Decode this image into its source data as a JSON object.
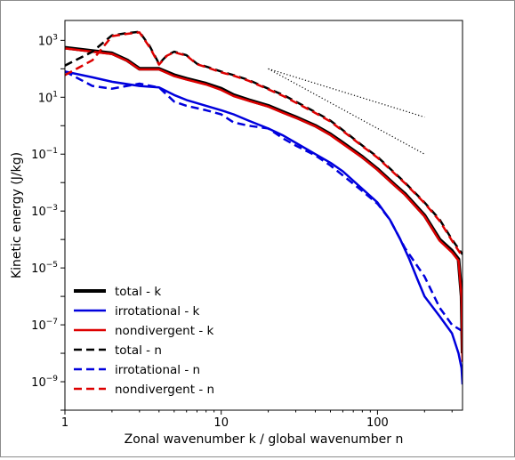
{
  "chart_data": {
    "type": "line",
    "xlabel": "Zonal wavenumber k / global wavenumber n",
    "ylabel": "Kinetic energy (J/kg)",
    "x_scale": "log",
    "y_scale": "log",
    "xlim": [
      1,
      350
    ],
    "ylim": [
      1e-10,
      5000
    ],
    "x_ticks": [
      {
        "value": 1,
        "label": "1"
      },
      {
        "value": 10,
        "label": "10"
      },
      {
        "value": 100,
        "label": "100"
      }
    ],
    "y_ticks": [
      {
        "value": 1e-09,
        "base": "10",
        "exp": "−9"
      },
      {
        "value": 1e-07,
        "base": "10",
        "exp": "−7"
      },
      {
        "value": 1e-05,
        "base": "10",
        "exp": "−5"
      },
      {
        "value": 0.001,
        "base": "10",
        "exp": "−3"
      },
      {
        "value": 0.1,
        "base": "10",
        "exp": "−1"
      },
      {
        "value": 10,
        "base": "10",
        "exp": "1"
      },
      {
        "value": 1000,
        "base": "10",
        "exp": "3"
      }
    ],
    "grid": false,
    "legend_position": "lower-left",
    "series": [
      {
        "name": "total - k",
        "color": "#000000",
        "style": "solid",
        "width": 4,
        "points": [
          [
            1,
            550
          ],
          [
            2,
            350
          ],
          [
            2.5,
            200
          ],
          [
            3,
            100
          ],
          [
            4,
            100
          ],
          [
            5,
            60
          ],
          [
            6,
            45
          ],
          [
            8,
            30
          ],
          [
            10,
            20
          ],
          [
            12,
            12
          ],
          [
            15,
            8
          ],
          [
            20,
            5
          ],
          [
            25,
            3
          ],
          [
            30,
            2
          ],
          [
            40,
            1
          ],
          [
            50,
            0.5
          ],
          [
            60,
            0.25
          ],
          [
            80,
            0.08
          ],
          [
            100,
            0.03
          ],
          [
            130,
            0.008
          ],
          [
            150,
            0.004
          ],
          [
            200,
            0.0007
          ],
          [
            250,
            0.0001
          ],
          [
            300,
            4e-05
          ],
          [
            330,
            2e-05
          ],
          [
            345,
            1e-06
          ],
          [
            350,
            1e-08
          ]
        ]
      },
      {
        "name": "irrotational - k",
        "color": "#0000dd",
        "style": "solid",
        "width": 2.5,
        "points": [
          [
            1,
            80
          ],
          [
            1.5,
            50
          ],
          [
            2,
            35
          ],
          [
            3,
            25
          ],
          [
            4,
            22
          ],
          [
            5,
            12
          ],
          [
            6,
            8
          ],
          [
            8,
            5
          ],
          [
            10,
            3.5
          ],
          [
            12,
            2.5
          ],
          [
            15,
            1.5
          ],
          [
            20,
            0.8
          ],
          [
            25,
            0.45
          ],
          [
            30,
            0.25
          ],
          [
            40,
            0.1
          ],
          [
            50,
            0.05
          ],
          [
            60,
            0.025
          ],
          [
            80,
            0.006
          ],
          [
            100,
            0.002
          ],
          [
            120,
            0.0005
          ],
          [
            140,
            0.0001
          ],
          [
            160,
            2e-05
          ],
          [
            180,
            4e-06
          ],
          [
            200,
            1e-06
          ],
          [
            250,
            2e-07
          ],
          [
            300,
            5e-08
          ],
          [
            330,
            1e-08
          ],
          [
            345,
            3e-09
          ],
          [
            350,
            8e-10
          ]
        ]
      },
      {
        "name": "nondivergent - k",
        "color": "#dd0000",
        "style": "solid",
        "width": 2.5,
        "points": [
          [
            1,
            520
          ],
          [
            2,
            330
          ],
          [
            2.5,
            190
          ],
          [
            3,
            95
          ],
          [
            4,
            95
          ],
          [
            5,
            55
          ],
          [
            6,
            42
          ],
          [
            8,
            28
          ],
          [
            10,
            18
          ],
          [
            12,
            11
          ],
          [
            15,
            7.5
          ],
          [
            20,
            4.7
          ],
          [
            25,
            2.8
          ],
          [
            30,
            1.9
          ],
          [
            40,
            0.95
          ],
          [
            50,
            0.47
          ],
          [
            60,
            0.23
          ],
          [
            80,
            0.075
          ],
          [
            100,
            0.028
          ],
          [
            130,
            0.0075
          ],
          [
            150,
            0.0037
          ],
          [
            200,
            0.00065
          ],
          [
            250,
            9e-05
          ],
          [
            300,
            3.5e-05
          ],
          [
            330,
            1.8e-05
          ],
          [
            345,
            9e-07
          ],
          [
            350,
            5e-09
          ]
        ]
      },
      {
        "name": "total - n",
        "color": "#000000",
        "style": "dash",
        "width": 2.5,
        "points": [
          [
            1,
            130
          ],
          [
            1.5,
            400
          ],
          [
            2,
            1500
          ],
          [
            2.5,
            1800
          ],
          [
            3,
            2000
          ],
          [
            3.5,
            600
          ],
          [
            4,
            150
          ],
          [
            4.5,
            300
          ],
          [
            5,
            400
          ],
          [
            6,
            300
          ],
          [
            7,
            150
          ],
          [
            8,
            120
          ],
          [
            10,
            80
          ],
          [
            12,
            60
          ],
          [
            15,
            40
          ],
          [
            20,
            20
          ],
          [
            25,
            12
          ],
          [
            30,
            7
          ],
          [
            40,
            3
          ],
          [
            50,
            1.5
          ],
          [
            60,
            0.7
          ],
          [
            80,
            0.2
          ],
          [
            100,
            0.08
          ],
          [
            150,
            0.01
          ],
          [
            200,
            0.002
          ],
          [
            250,
            0.0005
          ],
          [
            300,
            0.0001
          ],
          [
            350,
            3e-05
          ]
        ]
      },
      {
        "name": "irrotational - n",
        "color": "#0000dd",
        "style": "dash",
        "width": 2.5,
        "points": [
          [
            1,
            80
          ],
          [
            1.5,
            25
          ],
          [
            2,
            20
          ],
          [
            3,
            30
          ],
          [
            4,
            22
          ],
          [
            5,
            7
          ],
          [
            6,
            5
          ],
          [
            8,
            3.5
          ],
          [
            10,
            2.5
          ],
          [
            12,
            1.3
          ],
          [
            15,
            1
          ],
          [
            20,
            0.8
          ],
          [
            25,
            0.35
          ],
          [
            30,
            0.2
          ],
          [
            40,
            0.09
          ],
          [
            50,
            0.04
          ],
          [
            60,
            0.018
          ],
          [
            80,
            0.005
          ],
          [
            100,
            0.0018
          ],
          [
            120,
            0.0005
          ],
          [
            150,
            5e-05
          ],
          [
            200,
            5e-06
          ],
          [
            250,
            4e-07
          ],
          [
            300,
            1e-07
          ],
          [
            350,
            6e-08
          ]
        ]
      },
      {
        "name": "nondivergent - n",
        "color": "#dd0000",
        "style": "dash",
        "width": 2.5,
        "points": [
          [
            1,
            60
          ],
          [
            1.5,
            200
          ],
          [
            2,
            1400
          ],
          [
            2.5,
            1700
          ],
          [
            3,
            1900
          ],
          [
            3.5,
            550
          ],
          [
            4,
            140
          ],
          [
            4.5,
            290
          ],
          [
            5,
            380
          ],
          [
            6,
            290
          ],
          [
            7,
            145
          ],
          [
            8,
            115
          ],
          [
            10,
            75
          ],
          [
            12,
            57
          ],
          [
            15,
            38
          ],
          [
            20,
            19
          ],
          [
            25,
            11
          ],
          [
            30,
            6.5
          ],
          [
            40,
            2.8
          ],
          [
            50,
            1.4
          ],
          [
            60,
            0.65
          ],
          [
            80,
            0.19
          ],
          [
            100,
            0.075
          ],
          [
            150,
            0.0095
          ],
          [
            200,
            0.0019
          ],
          [
            250,
            0.00045
          ],
          [
            300,
            9e-05
          ],
          [
            350,
            2.5e-05
          ]
        ]
      }
    ],
    "reference_lines": [
      {
        "style": "dotted",
        "color": "#000000",
        "points": [
          [
            20,
            100
          ],
          [
            200,
            2
          ]
        ]
      },
      {
        "style": "dotted",
        "color": "#000000",
        "points": [
          [
            20,
            100
          ],
          [
            200,
            0.1
          ]
        ]
      }
    ]
  }
}
